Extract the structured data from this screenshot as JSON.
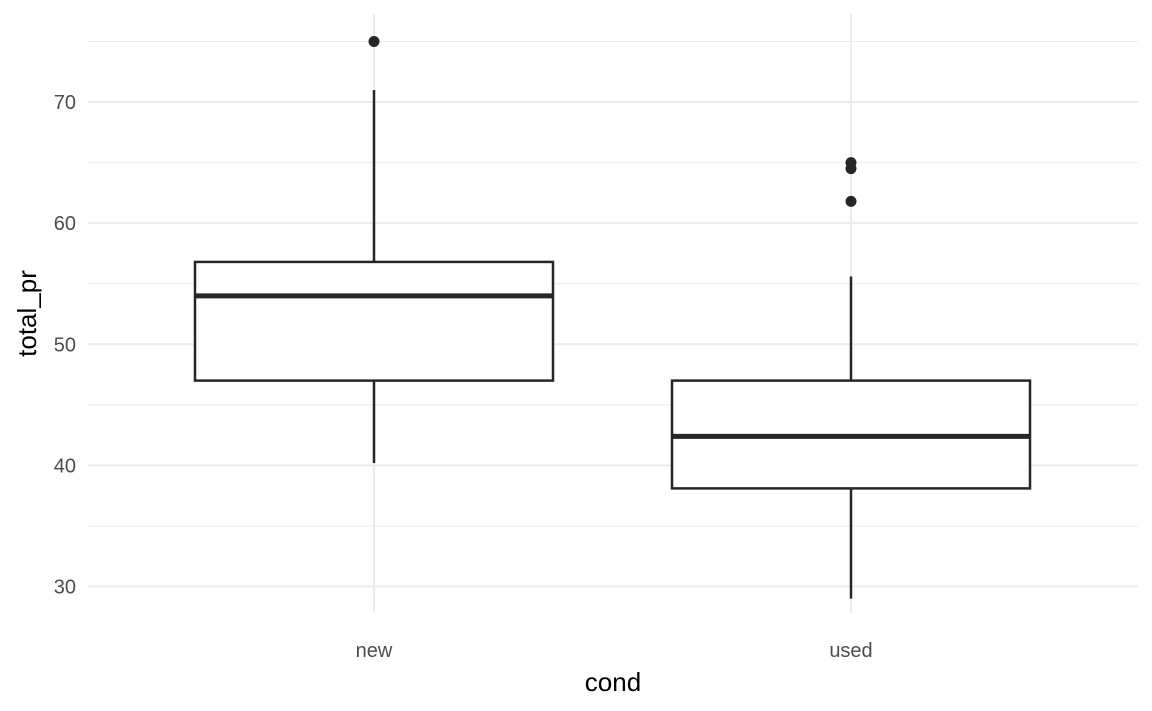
{
  "chart_data": {
    "type": "boxplot",
    "xlabel": "cond",
    "ylabel": "total_pr",
    "ylim": [
      27,
      77
    ],
    "y_ticks": [
      30,
      40,
      50,
      60,
      70
    ],
    "y_minor_ticks": [
      35,
      45,
      55,
      65,
      75
    ],
    "categories": [
      "new",
      "used"
    ],
    "boxes": [
      {
        "category": "new",
        "min": 40.2,
        "q1": 47.0,
        "median": 54.0,
        "q3": 56.8,
        "max": 71.0,
        "outliers": [
          75.0
        ]
      },
      {
        "category": "used",
        "min": 29.0,
        "q1": 38.1,
        "median": 42.4,
        "q3": 47.0,
        "max": 55.6,
        "outliers": [
          61.8,
          64.5,
          65.0
        ]
      }
    ],
    "grid": true,
    "legend": "none",
    "colors": {
      "box_fill": "#ffffff",
      "box_stroke": "#262626",
      "grid": "#ebebeb",
      "tick_text": "#4d4d4d"
    }
  }
}
